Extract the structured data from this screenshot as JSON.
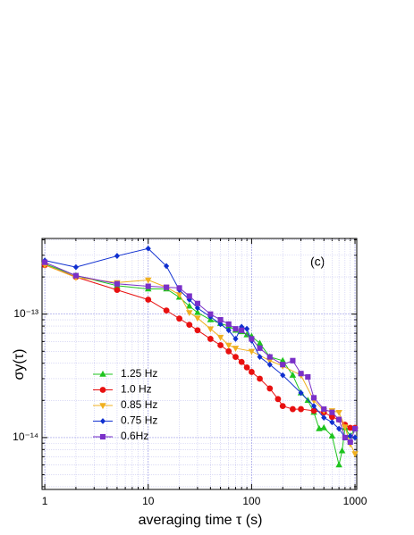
{
  "chart_data": {
    "type": "line",
    "xlabel": "averaging time τ (s)",
    "ylabel": "σy(τ)",
    "annotation": "(c)",
    "xscale": "log",
    "yscale": "log",
    "xlim": [
      0.94,
      1040
    ],
    "ylim": [
      3.8e-15,
      4.1e-13
    ],
    "xticks": [
      1,
      10,
      100,
      1000
    ],
    "yticks": [
      {
        "value": 1e-13,
        "label": "10⁻¹³"
      },
      {
        "value": 1e-14,
        "label": "10⁻¹⁴"
      }
    ],
    "grid": true,
    "minor_grid": true,
    "legend": "lower left",
    "series": [
      {
        "name": "1.25 Hz",
        "color": "#1ec41e",
        "marker": "triangle-up",
        "x": [
          1,
          2,
          5,
          10,
          15,
          20,
          25,
          30,
          40,
          50,
          60,
          70,
          80,
          90,
          100,
          120,
          150,
          200,
          250,
          300,
          350,
          400,
          450,
          500,
          600,
          700,
          750,
          800,
          900,
          1000
        ],
        "values": [
          2.55e-13,
          2.05e-13,
          1.7e-13,
          1.6e-13,
          1.6e-13,
          1.37e-13,
          1.16e-13,
          1.03e-13,
          9e-14,
          8.4e-14,
          8e-14,
          7.4e-14,
          7.2e-14,
          6.8e-14,
          6.6e-14,
          5.8e-14,
          4.5e-14,
          4.2e-14,
          3.2e-14,
          2.3e-14,
          2e-14,
          1.6e-14,
          1.18e-14,
          1.2e-14,
          1.03e-14,
          6e-15,
          7.8e-15,
          1.2e-14,
          1.03e-14,
          1.18e-14
        ]
      },
      {
        "name": "1.0 Hz",
        "color": "#e81010",
        "marker": "circle",
        "x": [
          1,
          2,
          5,
          10,
          15,
          20,
          25,
          30,
          40,
          50,
          60,
          70,
          80,
          90,
          100,
          120,
          150,
          180,
          200,
          250,
          300,
          400,
          500,
          600,
          700,
          800,
          900,
          1000
        ],
        "values": [
          2.5e-13,
          2e-13,
          1.57e-13,
          1.31e-13,
          1.07e-13,
          9.2e-14,
          8.2e-14,
          7.4e-14,
          6.3e-14,
          5.6e-14,
          5e-14,
          4.5e-14,
          4.1e-14,
          3.7e-14,
          3.4e-14,
          3e-14,
          2.5e-14,
          2.05e-14,
          1.8e-14,
          1.7e-14,
          1.7e-14,
          1.65e-14,
          1.6e-14,
          1.47e-14,
          1.4e-14,
          1.27e-14,
          1.2e-14,
          1.2e-14
        ]
      },
      {
        "name": "0.85 Hz",
        "color": "#f0b020",
        "marker": "triangle-down",
        "x": [
          1,
          2,
          5,
          10,
          15,
          20,
          25,
          30,
          40,
          50,
          60,
          70,
          100,
          150,
          200,
          300,
          400,
          500,
          600,
          700,
          800,
          900,
          1000
        ],
        "values": [
          2.5e-13,
          1.98e-13,
          1.8e-13,
          1.89e-13,
          1.65e-13,
          1.44e-13,
          1.03e-13,
          9.3e-14,
          7.6e-14,
          6.5e-14,
          5.6e-14,
          5.3e-14,
          5e-14,
          4.2e-14,
          3.8e-14,
          3.2e-14,
          2e-14,
          1.65e-14,
          1.65e-14,
          1.6e-14,
          1.22e-14,
          8.9e-15,
          7.4e-15
        ]
      },
      {
        "name": "0.75 Hz",
        "color": "#1030d0",
        "marker": "diamond",
        "x": [
          1,
          2,
          5,
          10,
          15,
          20,
          25,
          30,
          40,
          50,
          60,
          70,
          80,
          90,
          100,
          120,
          150,
          200,
          300,
          400,
          500,
          600,
          700,
          800,
          900,
          1000
        ],
        "values": [
          2.72e-13,
          2.4e-13,
          2.96e-13,
          3.4e-13,
          2.45e-13,
          1.57e-13,
          1.31e-13,
          1.12e-13,
          9.5e-14,
          8.3e-14,
          7.4e-14,
          6.3e-14,
          7.9e-14,
          7.6e-14,
          6.1e-14,
          4.5e-14,
          3.9e-14,
          3.2e-14,
          2.3e-14,
          1.8e-14,
          1.45e-14,
          1.33e-14,
          1.18e-14,
          1e-14,
          1.03e-14,
          1e-14
        ]
      },
      {
        "name": "0.6Hz",
        "color": "#7a30c8",
        "marker": "square",
        "x": [
          1,
          2,
          5,
          10,
          15,
          20,
          25,
          30,
          40,
          50,
          60,
          70,
          80,
          100,
          120,
          150,
          200,
          250,
          300,
          350,
          400,
          500,
          600,
          700,
          800,
          900,
          1000
        ],
        "values": [
          2.63e-13,
          2.05e-13,
          1.76e-13,
          1.68e-13,
          1.65e-13,
          1.63e-13,
          1.4e-13,
          1.22e-13,
          1e-13,
          9e-14,
          8.3e-14,
          7.6e-14,
          7.4e-14,
          6.3e-14,
          5.3e-14,
          4.5e-14,
          3.9e-14,
          4.2e-14,
          3.3e-14,
          3.1e-14,
          2.1e-14,
          1.7e-14,
          1.6e-14,
          1.4e-14,
          1e-14,
          9.2e-15,
          1.18e-14
        ]
      }
    ]
  }
}
